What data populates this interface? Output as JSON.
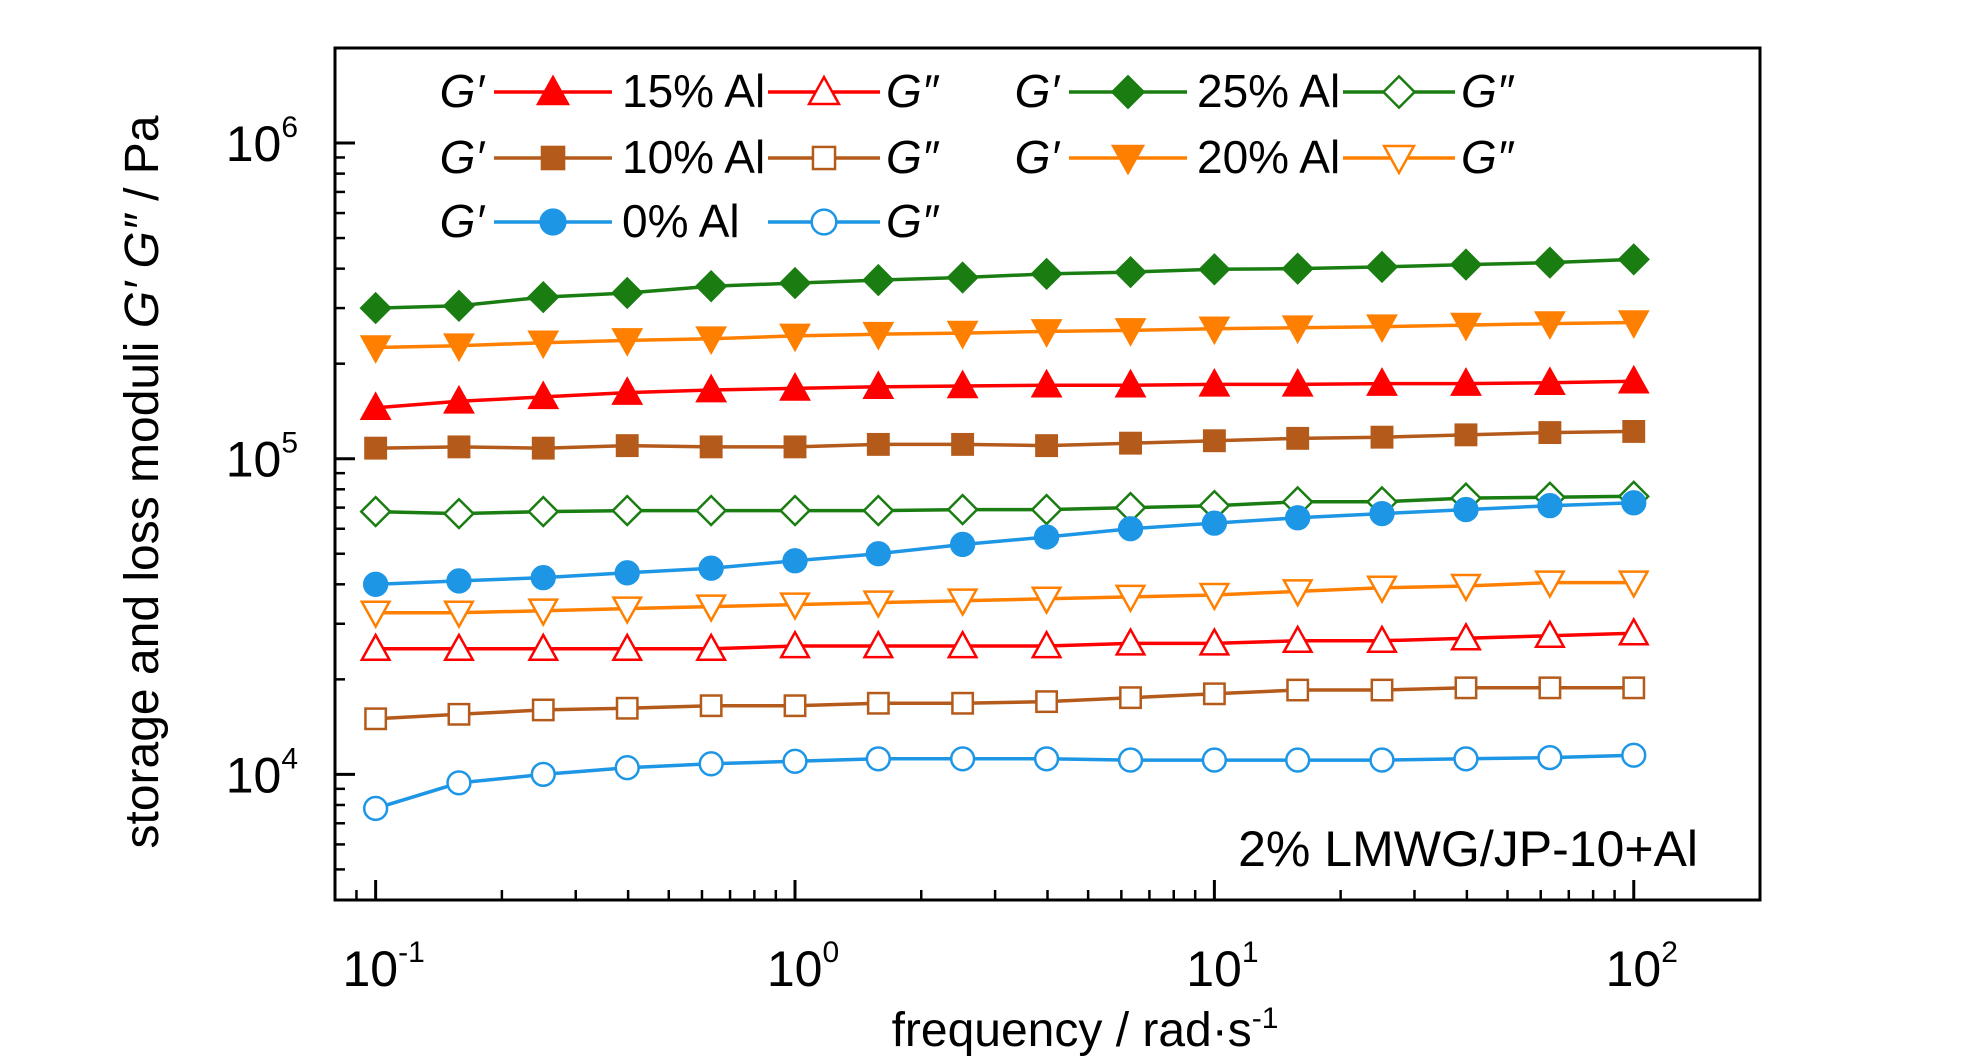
{
  "chart_data": {
    "type": "line",
    "title": "",
    "xlabel": "frequency / rad·s",
    "xlabel_sup": "-1",
    "ylabel_parts": [
      "storage and loss moduli ",
      "G′ G″",
      "  / Pa"
    ],
    "x_scale": "log",
    "y_scale": "log",
    "xlim": [
      0.08,
      200
    ],
    "ylim": [
      4000,
      2000000
    ],
    "x_ticks": [
      {
        "value": 0.1,
        "base": "10",
        "exp": "-1"
      },
      {
        "value": 1,
        "base": "10",
        "exp": "0"
      },
      {
        "value": 10,
        "base": "10",
        "exp": "1"
      },
      {
        "value": 100,
        "base": "10",
        "exp": "2"
      }
    ],
    "y_ticks": [
      {
        "value": 10000,
        "base": "10",
        "exp": "4"
      },
      {
        "value": 100000,
        "base": "10",
        "exp": "5"
      },
      {
        "value": 1000000,
        "base": "10",
        "exp": "6"
      }
    ],
    "annotation": "2% LMWG/JP-10+Al",
    "grid": false,
    "legend_position": "top-left",
    "x": [
      0.1,
      0.158,
      0.251,
      0.398,
      0.631,
      1.0,
      1.58,
      2.51,
      3.98,
      6.31,
      10.0,
      15.8,
      25.1,
      39.8,
      63.1,
      100
    ],
    "series": [
      {
        "name": "G′ 25% Al",
        "color": "#1a7d12",
        "marker": "diamond",
        "filled": true,
        "values": [
          300000,
          305000,
          325000,
          335000,
          352000,
          360000,
          368000,
          375000,
          385000,
          390000,
          398000,
          400000,
          405000,
          412000,
          418000,
          428000
        ]
      },
      {
        "name": "G′ 20% Al",
        "color": "#ff8000",
        "marker": "triangle-down",
        "filled": true,
        "values": [
          225000,
          228000,
          233000,
          237000,
          240000,
          245000,
          248000,
          250000,
          253000,
          255000,
          258000,
          260000,
          262000,
          265000,
          268000,
          270000
        ]
      },
      {
        "name": "G′ 15% Al",
        "color": "#ff0000",
        "marker": "triangle-up",
        "filled": true,
        "values": [
          145000,
          152000,
          157000,
          162000,
          165000,
          167000,
          169000,
          170000,
          171000,
          171000,
          172000,
          172000,
          173000,
          173000,
          174000,
          176000
        ]
      },
      {
        "name": "G′ 10% Al",
        "color": "#b45a1a",
        "marker": "square",
        "filled": true,
        "values": [
          108000,
          109000,
          108000,
          110000,
          109000,
          109000,
          111000,
          111000,
          110000,
          112000,
          114000,
          116000,
          117000,
          119000,
          121000,
          122000
        ]
      },
      {
        "name": "G″ 25% Al",
        "color": "#1a7d12",
        "marker": "diamond",
        "filled": false,
        "values": [
          68000,
          67000,
          68000,
          68500,
          68500,
          68500,
          68500,
          69000,
          69000,
          70000,
          71000,
          73000,
          73000,
          75000,
          75500,
          76000
        ]
      },
      {
        "name": "G′ 0% Al",
        "color": "#1e96e6",
        "marker": "circle",
        "filled": true,
        "values": [
          40000,
          41000,
          42000,
          43500,
          45000,
          47500,
          50000,
          53500,
          56500,
          60000,
          62500,
          65000,
          67000,
          69000,
          71000,
          72500
        ]
      },
      {
        "name": "G″ 20% Al",
        "color": "#ff8000",
        "marker": "triangle-down",
        "filled": false,
        "values": [
          32500,
          32500,
          33000,
          33500,
          34000,
          34500,
          35000,
          35500,
          36000,
          36500,
          37000,
          38000,
          39000,
          39500,
          40500,
          40500
        ]
      },
      {
        "name": "G″ 15% Al",
        "color": "#ff0000",
        "marker": "triangle-up",
        "filled": false,
        "values": [
          25000,
          25000,
          25000,
          25000,
          25000,
          25500,
          25500,
          25500,
          25500,
          26000,
          26000,
          26500,
          26500,
          27000,
          27500,
          28000
        ]
      },
      {
        "name": "G″ 10% Al",
        "color": "#b45a1a",
        "marker": "square",
        "filled": false,
        "values": [
          15000,
          15500,
          16000,
          16200,
          16500,
          16500,
          16800,
          16800,
          17000,
          17500,
          18000,
          18500,
          18500,
          18800,
          18800,
          18800
        ]
      },
      {
        "name": "G″ 0% Al",
        "color": "#1e96e6",
        "marker": "circle",
        "filled": false,
        "values": [
          7800,
          9400,
          10000,
          10500,
          10800,
          11000,
          11200,
          11200,
          11200,
          11100,
          11100,
          11100,
          11100,
          11200,
          11300,
          11500
        ]
      }
    ],
    "legend": [
      {
        "gp_label": "G′",
        "text": "15% Al",
        "gpp_label": "G″",
        "color": "#ff0000",
        "marker": "triangle-up"
      },
      {
        "gp_label": "G′",
        "text": "25% Al",
        "gpp_label": "G″",
        "color": "#1a7d12",
        "marker": "diamond"
      },
      {
        "gp_label": "G′",
        "text": "10% Al",
        "gpp_label": "G″",
        "color": "#b45a1a",
        "marker": "square"
      },
      {
        "gp_label": "G′",
        "text": "20% Al",
        "gpp_label": "G″",
        "color": "#ff8000",
        "marker": "triangle-down"
      },
      {
        "gp_label": "G′",
        "text": "0%  Al",
        "gpp_label": "G″",
        "color": "#1e96e6",
        "marker": "circle"
      }
    ]
  }
}
